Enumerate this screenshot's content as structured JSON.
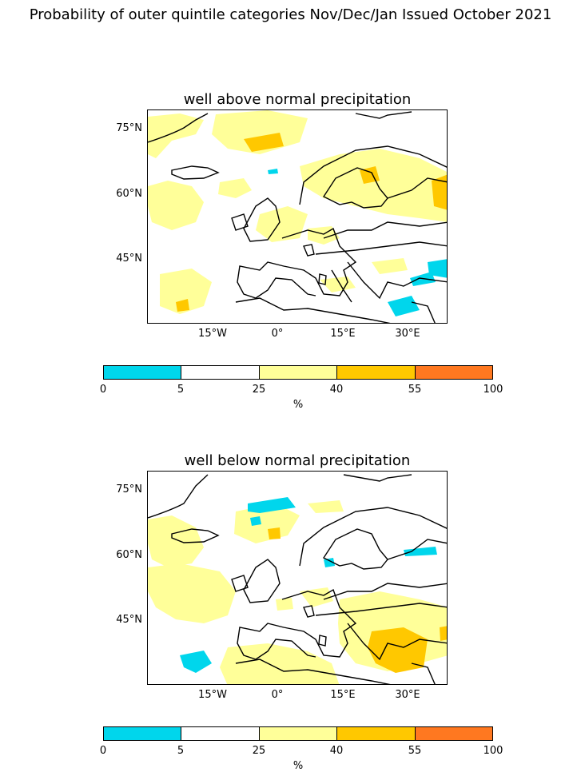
{
  "figure": {
    "title": "Probability of outer quintile categories Nov/Dec/Jan Issued October 2021"
  },
  "panels": [
    {
      "title": "well above normal precipitation"
    },
    {
      "title": "well below normal precipitation"
    }
  ],
  "axes": {
    "lat_labels": [
      "75°N",
      "60°N",
      "45°N"
    ],
    "lon_labels": [
      "15°W",
      "0°",
      "15°E",
      "30°E"
    ]
  },
  "colorbar": {
    "ticks": [
      "0",
      "5",
      "25",
      "40",
      "55",
      "100"
    ],
    "unit": "%",
    "colors": [
      "#00d6ec",
      "#ffffff",
      "#ffff99",
      "#ffc800",
      "#ff7820"
    ]
  }
}
